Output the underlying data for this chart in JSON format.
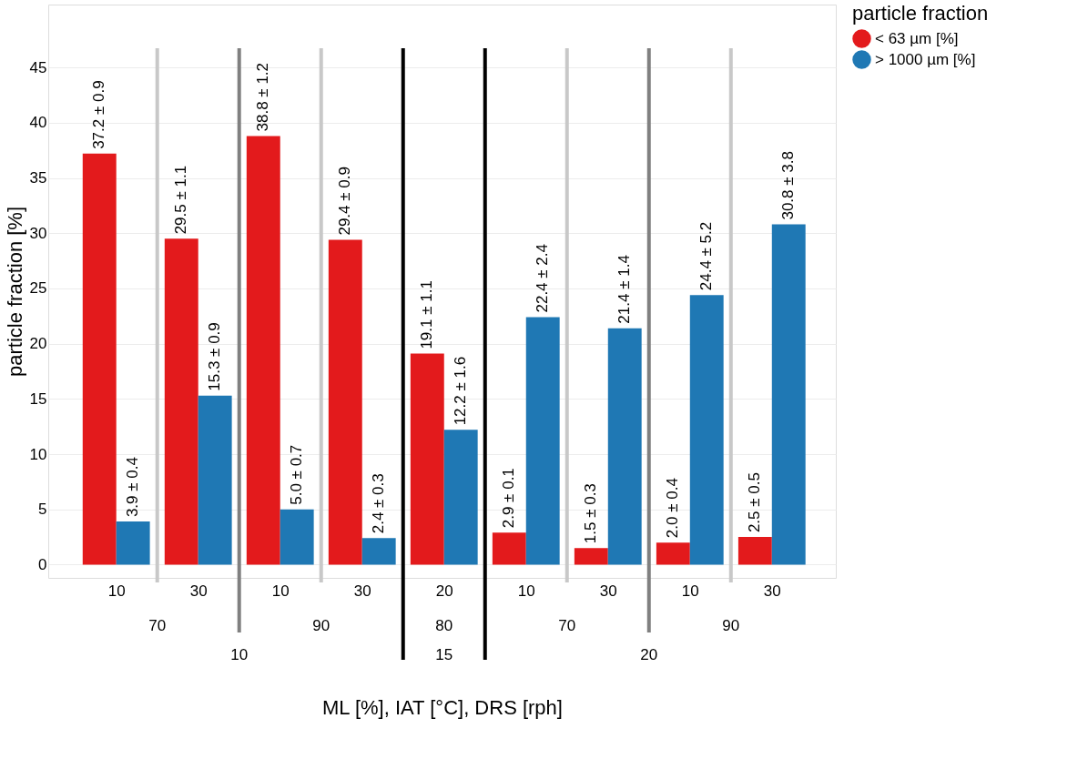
{
  "chart_data": {
    "type": "bar",
    "xlabel": "ML [%], IAT [°C], DRS [rph]",
    "ylabel": "particle fraction [%]",
    "legend_title": "particle fraction",
    "categories": [
      "10",
      "30",
      "10",
      "30",
      "20",
      "10",
      "30",
      "10",
      "30"
    ],
    "series": [
      {
        "name": "< 63 µm [%]",
        "color": "#e31a1c",
        "values": [
          37.2,
          29.5,
          38.8,
          29.4,
          19.1,
          2.9,
          1.5,
          2.0,
          2.5
        ],
        "value_labels": [
          "37.2 ± 0.9",
          "29.5 ± 1.1",
          "38.8 ± 1.2",
          "29.4 ± 0.9",
          "19.1 ± 1.1",
          "2.9 ± 0.1",
          "1.5 ± 0.3",
          "2.0 ± 0.4",
          "2.5 ± 0.5"
        ]
      },
      {
        "name": "> 1000 µm [%]",
        "color": "#1f78b4",
        "values": [
          3.9,
          15.3,
          5.0,
          2.4,
          12.2,
          22.4,
          21.4,
          24.4,
          30.8
        ],
        "value_labels": [
          "3.9 ± 0.4",
          "15.3 ± 0.9",
          "5.0 ± 0.7",
          "2.4 ± 0.3",
          "12.2 ± 1.6",
          "22.4 ± 2.4",
          "21.4 ± 1.4",
          "24.4 ± 5.2",
          "30.8 ± 3.8"
        ]
      }
    ],
    "annotations": [
      "70",
      "90",
      "80",
      "70",
      "90",
      "10",
      "15",
      "20"
    ],
    "ylim": [
      -1.2,
      50.7
    ],
    "yticks": [
      0,
      5,
      10,
      15,
      20,
      25,
      30,
      35,
      40,
      45
    ],
    "grid": "y",
    "legend": "top right"
  }
}
